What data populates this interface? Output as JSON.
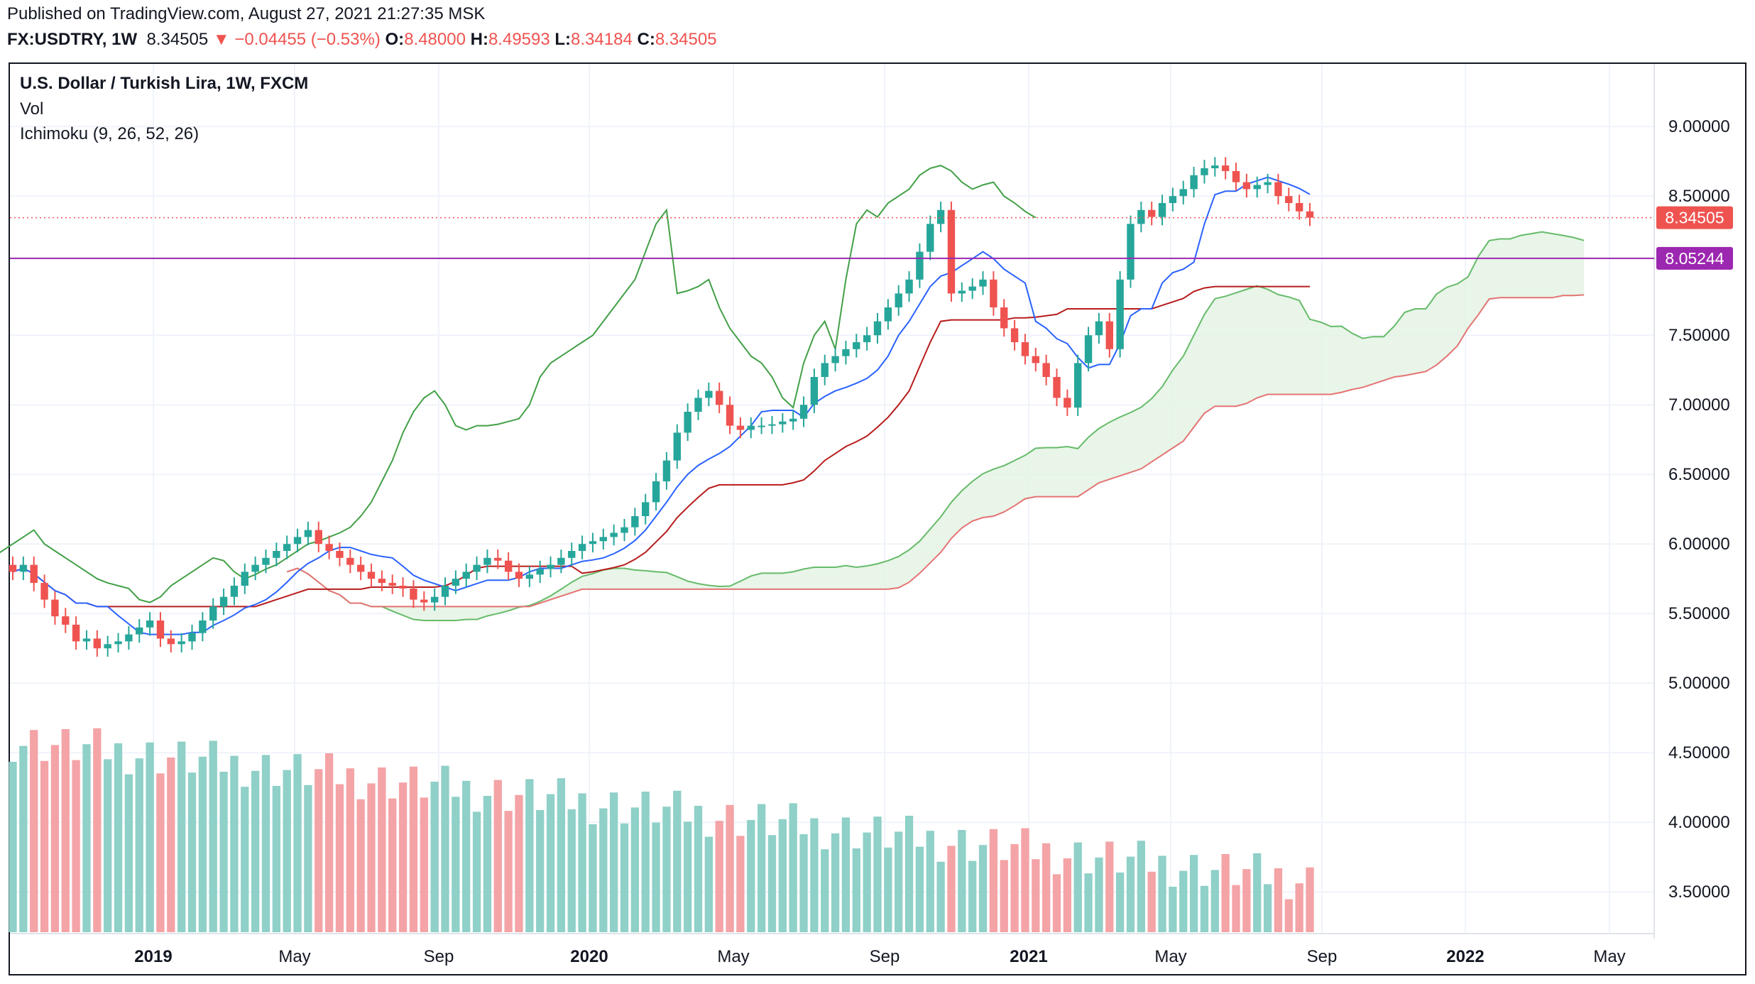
{
  "header": {
    "published": "Published on TradingView.com, August 27, 2021 21:27:35 MSK",
    "symbol": "FX:USDTRY, 1W",
    "last": "8.34505",
    "change_arrow": "▼",
    "change": "−0.04455 (−0.53%)",
    "o_label": "O:",
    "o": "8.48000",
    "h_label": "H:",
    "h": "8.49593",
    "l_label": "L:",
    "l": "8.34184",
    "c_label": "C:",
    "c": "8.34505"
  },
  "legend": {
    "title": "U.S. Dollar / Turkish Lira, 1W, FXCM",
    "vol": "Vol",
    "ichimoku": "Ichimoku (9, 26, 52, 26)"
  },
  "colors": {
    "up": "#26a69a",
    "down": "#ef5350",
    "vol_up": "#8fd0c8",
    "vol_down": "#f4a3a6",
    "tenkan": "#2962ff",
    "kijun": "#b71c1c",
    "chikou": "#43a047",
    "cloud_bull": "#e4f3e4",
    "cloud_bear": "#fbe2e2",
    "hline": "#9c27b0"
  },
  "chart_data": {
    "type": "candlestick",
    "title": "U.S. Dollar / Turkish Lira, 1W, FXCM",
    "interval": "1W",
    "ylim": [
      3.2,
      9.45
    ],
    "y_ticks": [
      "9.00000",
      "8.50000",
      "7.50000",
      "7.00000",
      "6.50000",
      "6.00000",
      "5.50000",
      "5.00000",
      "4.50000",
      "4.00000",
      "3.50000"
    ],
    "x_ticks": [
      "2019",
      "May",
      "Sep",
      "2020",
      "May",
      "Sep",
      "2021",
      "May",
      "Sep",
      "2022",
      "May"
    ],
    "last_price_label": "8.34505",
    "horizontal_line_label": "8.05244",
    "horizontal_line_value": 8.05244,
    "close_series": [
      5.8,
      5.85,
      5.72,
      5.6,
      5.48,
      5.42,
      5.3,
      5.32,
      5.25,
      5.28,
      5.3,
      5.35,
      5.4,
      5.45,
      5.32,
      5.28,
      5.3,
      5.36,
      5.45,
      5.55,
      5.62,
      5.7,
      5.8,
      5.85,
      5.9,
      5.95,
      6.0,
      6.05,
      6.1,
      6.0,
      5.95,
      5.9,
      5.85,
      5.8,
      5.75,
      5.72,
      5.7,
      5.68,
      5.6,
      5.58,
      5.62,
      5.7,
      5.75,
      5.8,
      5.85,
      5.9,
      5.88,
      5.8,
      5.75,
      5.78,
      5.82,
      5.85,
      5.9,
      5.95,
      6.0,
      6.02,
      6.05,
      6.08,
      6.12,
      6.2,
      6.3,
      6.45,
      6.6,
      6.8,
      6.95,
      7.05,
      7.1,
      7.0,
      6.85,
      6.82,
      6.85,
      6.85,
      6.86,
      6.88,
      6.9,
      7.0,
      7.2,
      7.3,
      7.35,
      7.4,
      7.45,
      7.5,
      7.6,
      7.7,
      7.8,
      7.9,
      8.1,
      8.3,
      8.4,
      7.8,
      7.82,
      7.85,
      7.9,
      7.7,
      7.55,
      7.45,
      7.35,
      7.3,
      7.2,
      7.05,
      6.98,
      7.3,
      7.5,
      7.6,
      7.4,
      7.9,
      8.3,
      8.4,
      8.35,
      8.45,
      8.5,
      8.55,
      8.65,
      8.7,
      8.72,
      8.68,
      8.6,
      8.55,
      8.58,
      8.6,
      8.5,
      8.45,
      8.39,
      8.345
    ],
    "volume_summary": "weekly volume bars, high in 2018–2019, declining through 2021",
    "ichimoku_params": [
      9,
      26,
      52,
      26
    ]
  }
}
